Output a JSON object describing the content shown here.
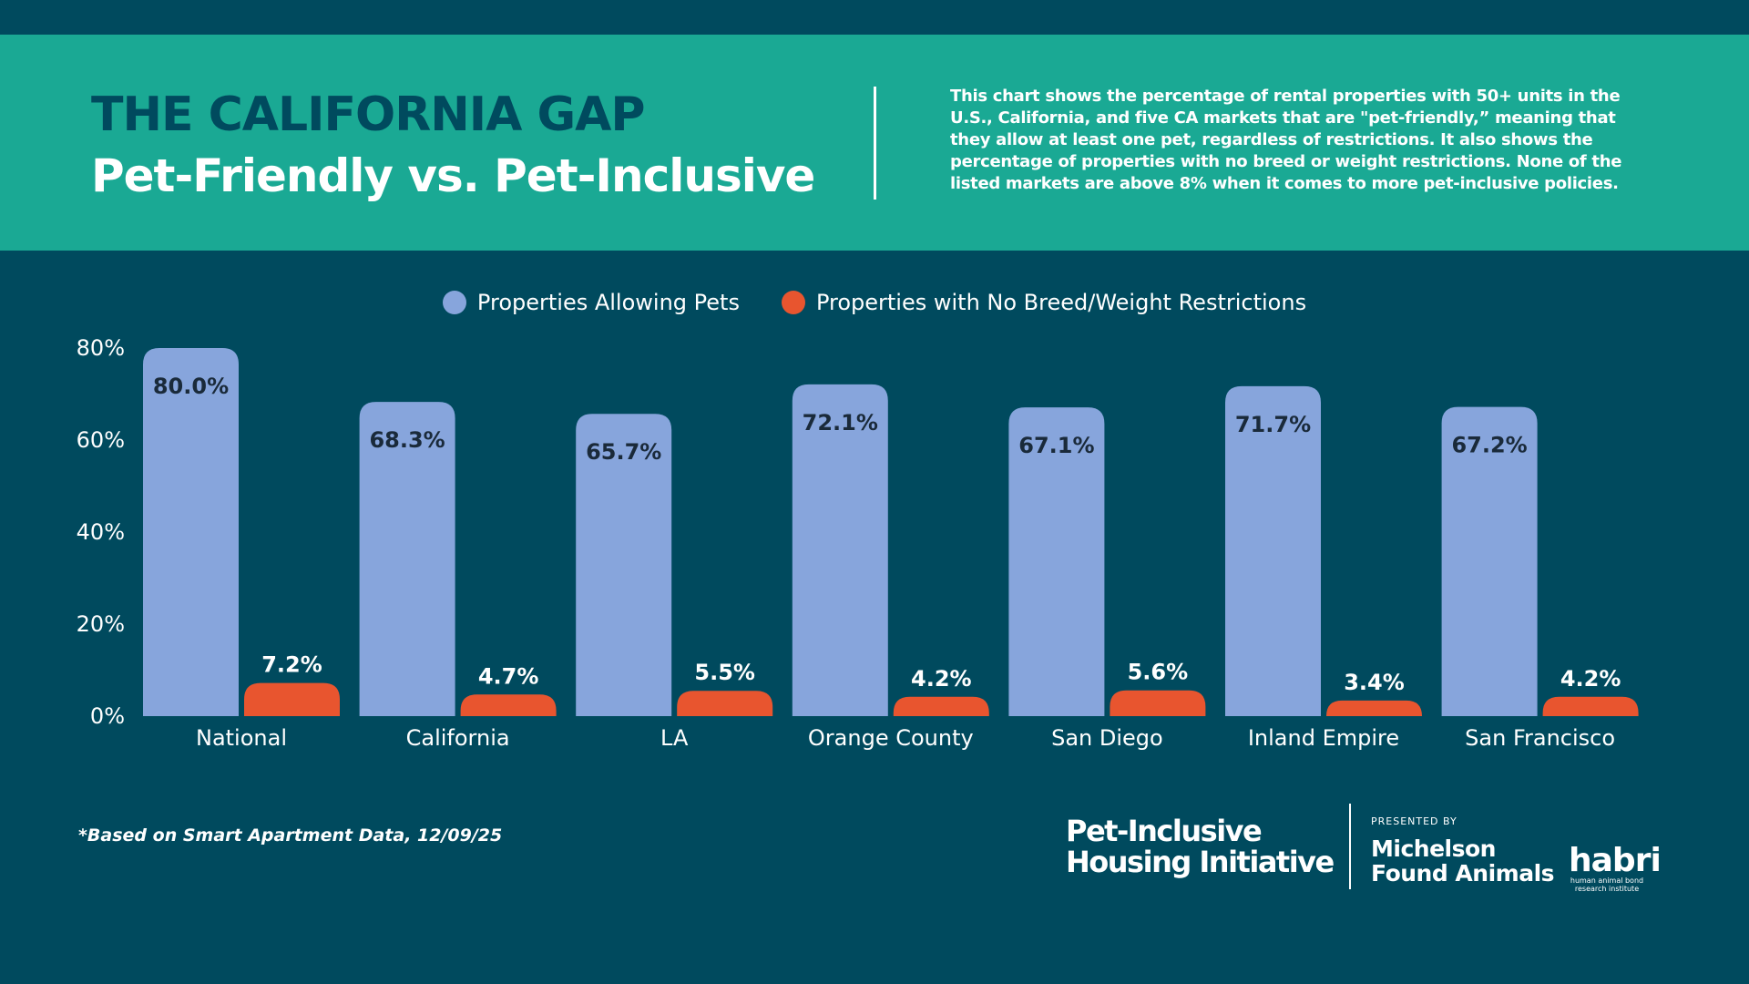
{
  "header": {
    "title": "THE CALIFORNIA GAP",
    "subtitle": "Pet-Friendly vs. Pet-Inclusive",
    "description": "This chart shows the percentage of rental properties with 50+ units in the U.S., California, and five CA markets that are \"pet-friendly,” meaning that they allow at least one pet, regardless of restrictions. It also shows the percentage of properties with no breed or weight restrictions. None of the listed markets are above 8% when it comes to more pet-inclusive policies."
  },
  "colors": {
    "background": "#004a5e",
    "band": "#1aa994",
    "series1": "#87a5dc",
    "series2": "#e8552f"
  },
  "chart_data": {
    "type": "bar",
    "categories": [
      "National",
      "California",
      "LA",
      "Orange County",
      "San Diego",
      "Inland Empire",
      "San Francisco"
    ],
    "series": [
      {
        "name": "Properties Allowing Pets",
        "values": [
          80.0,
          68.3,
          65.7,
          72.1,
          67.1,
          71.7,
          67.2
        ],
        "labels": [
          "80.0%",
          "68.3%",
          "65.7%",
          "72.1%",
          "67.1%",
          "71.7%",
          "67.2%"
        ],
        "color": "#87a5dc"
      },
      {
        "name": "Properties with No Breed/Weight Restrictions",
        "values": [
          7.2,
          4.7,
          5.5,
          4.2,
          5.6,
          3.4,
          4.2
        ],
        "labels": [
          "7.2%",
          "4.7%",
          "5.5%",
          "4.2%",
          "5.6%",
          "3.4%",
          "4.2%"
        ],
        "color": "#e8552f"
      }
    ],
    "yticks": [
      "0%",
      "20%",
      "40%",
      "60%",
      "80%"
    ],
    "ylim": [
      0,
      80
    ],
    "grid": false,
    "legend": "top-center"
  },
  "footer": {
    "note": "*Based on Smart Apartment Data, 12/09/25",
    "logo1": [
      "Pet-Inclusive",
      "Housing Initiative"
    ],
    "presented_by": "PRESENTED BY",
    "logo2": [
      "Michelson",
      "Found Animals"
    ],
    "logo3": {
      "name": "habri",
      "tagline": [
        "human animal bond",
        "research institute"
      ]
    }
  }
}
